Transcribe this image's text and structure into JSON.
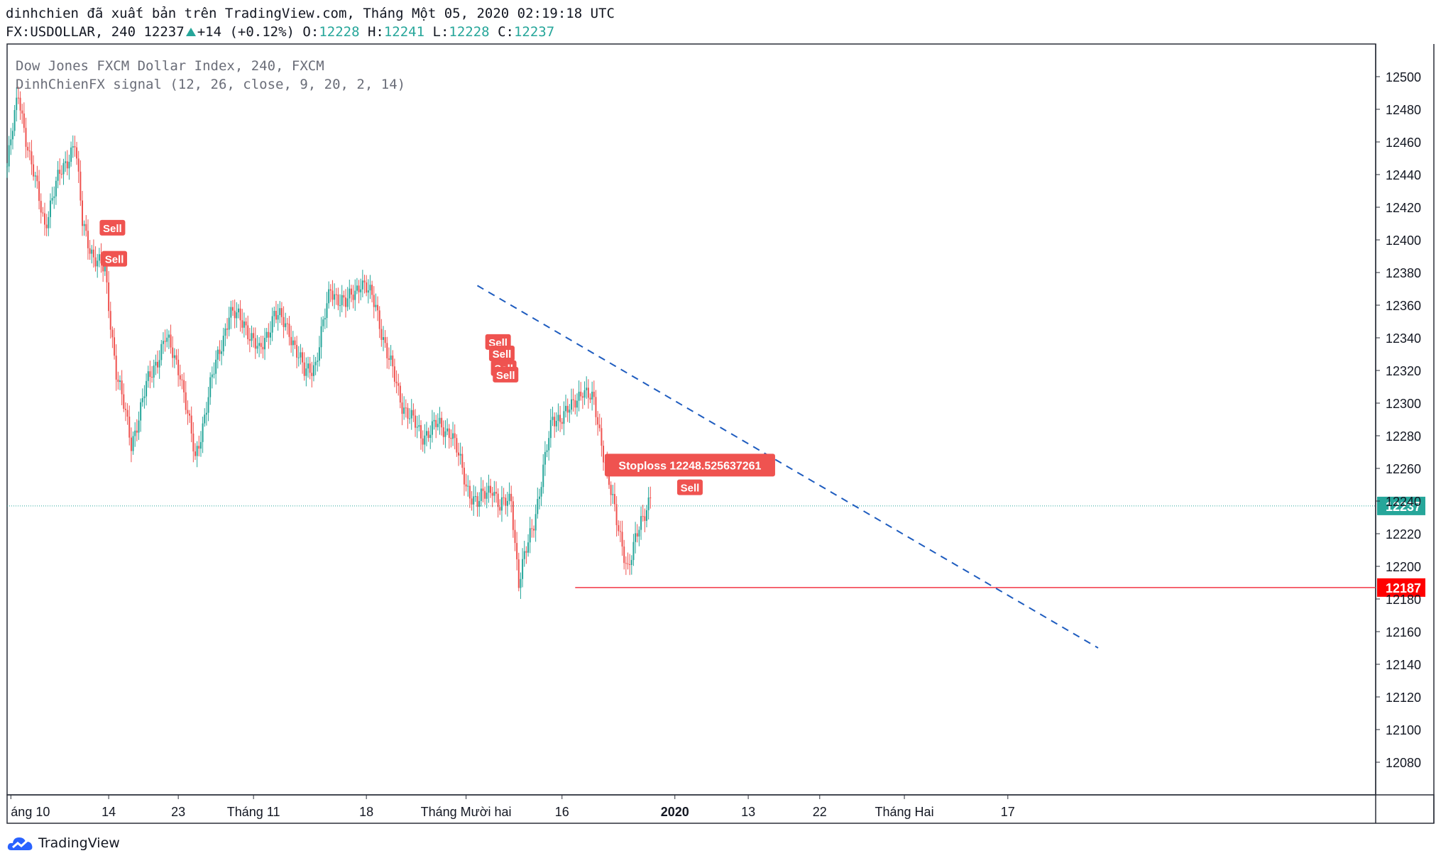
{
  "header": {
    "line1": "dinhchien đã xuất bản trên TradingView.com, Tháng Một 05, 2020 02:19:18 UTC",
    "symbol": "FX:USDOLLAR, 240",
    "price": "12237",
    "change": "+14 (+0.12%)",
    "o_label": "O:",
    "o_value": "12228",
    "h_label": "H:",
    "h_value": "12241",
    "l_label": "L:",
    "l_value": "12228",
    "c_label": "C:",
    "c_value": "12237"
  },
  "legend": {
    "line1": "Dow Jones FXCM Dollar Index, 240, FXCM",
    "line2": "DinhChienFX signal (12, 26, close, 9, 20, 2, 14)"
  },
  "logo": {
    "text": "TradingView"
  },
  "colors": {
    "up": "#26a69a",
    "down": "#ef5350",
    "trend": "#1e5cbf",
    "level": "#f23645",
    "priceLine": "#26a69a"
  },
  "chart_data": {
    "type": "candlestick",
    "ylim": [
      12060,
      12520
    ],
    "yticks": [
      12080,
      12100,
      12120,
      12140,
      12160,
      12180,
      12200,
      12220,
      12240,
      12260,
      12280,
      12300,
      12320,
      12340,
      12360,
      12380,
      12400,
      12420,
      12440,
      12460,
      12480,
      12500
    ],
    "xticks": [
      "áng 10",
      "14",
      "23",
      "Tháng 11",
      "18",
      "Tháng Mười hai",
      "16",
      "2020",
      "13",
      "22",
      "Tháng Hai",
      "17"
    ],
    "path_points": [
      [
        0,
        12445
      ],
      [
        6,
        12490
      ],
      [
        12,
        12450
      ],
      [
        20,
        12410
      ],
      [
        28,
        12440
      ],
      [
        36,
        12460
      ],
      [
        40,
        12410
      ],
      [
        46,
        12390
      ],
      [
        52,
        12380
      ],
      [
        58,
        12320
      ],
      [
        66,
        12275
      ],
      [
        74,
        12310
      ],
      [
        84,
        12340
      ],
      [
        92,
        12320
      ],
      [
        100,
        12265
      ],
      [
        108,
        12310
      ],
      [
        118,
        12355
      ],
      [
        126,
        12350
      ],
      [
        134,
        12330
      ],
      [
        142,
        12355
      ],
      [
        150,
        12345
      ],
      [
        158,
        12318
      ],
      [
        164,
        12325
      ],
      [
        172,
        12370
      ],
      [
        180,
        12360
      ],
      [
        188,
        12375
      ],
      [
        196,
        12360
      ],
      [
        202,
        12330
      ],
      [
        210,
        12300
      ],
      [
        220,
        12280
      ],
      [
        228,
        12286
      ],
      [
        236,
        12283
      ],
      [
        244,
        12250
      ],
      [
        250,
        12238
      ],
      [
        258,
        12250
      ],
      [
        262,
        12235
      ],
      [
        268,
        12242
      ],
      [
        272,
        12190
      ],
      [
        280,
        12228
      ],
      [
        290,
        12290
      ],
      [
        300,
        12296
      ],
      [
        306,
        12310
      ],
      [
        312,
        12299
      ],
      [
        318,
        12265
      ],
      [
        324,
        12226
      ],
      [
        330,
        12200
      ],
      [
        336,
        12222
      ],
      [
        342,
        12245
      ]
    ],
    "trendline": {
      "from": [
        250,
        12372
      ],
      "to": [
        580,
        12150
      ]
    },
    "horizontal_level": {
      "value": 12187,
      "from_x": 302,
      "label": "12187"
    },
    "last_price": {
      "value": 12237,
      "label": "12237"
    },
    "signals": [
      {
        "label": "Sell",
        "x": 56,
        "y": 12407
      },
      {
        "label": "Sell",
        "x": 57,
        "y": 12388
      },
      {
        "label": "Sell",
        "x": 261,
        "y": 12337
      },
      {
        "label": "Sell",
        "x": 263,
        "y": 12330
      },
      {
        "label": "Sell",
        "x": 264,
        "y": 12321
      },
      {
        "label": "Sell",
        "x": 265,
        "y": 12317
      },
      {
        "label": "Sell",
        "x": 363,
        "y": 12248
      }
    ],
    "stoploss": {
      "label": "Stoploss 12248.525637261",
      "x": 363,
      "y": 12262
    }
  }
}
